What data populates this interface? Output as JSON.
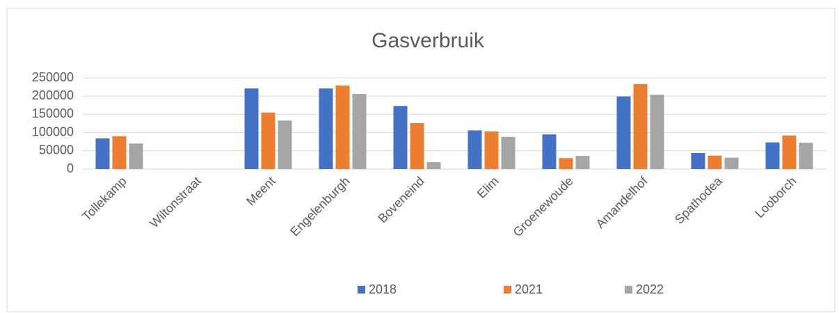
{
  "chart_data": {
    "type": "bar",
    "title": "Gasverbruik",
    "categories": [
      "Tollekamp",
      "Wiltonstraat",
      "Meent",
      "Engelenburgh",
      "Boveneind",
      "Elim",
      "Groenewoude",
      "Amandelhof",
      "Spathodea",
      "Looborch"
    ],
    "series": [
      {
        "name": "2018",
        "color": "#4472c4",
        "values": [
          84000,
          0,
          221000,
          221000,
          173000,
          106000,
          95000,
          199000,
          44000,
          73000
        ]
      },
      {
        "name": "2021",
        "color": "#ed7d31",
        "values": [
          90000,
          0,
          155000,
          229000,
          126000,
          103000,
          30000,
          233000,
          37000,
          92000
        ]
      },
      {
        "name": "2022",
        "color": "#a5a5a5",
        "values": [
          70000,
          0,
          133000,
          206000,
          19000,
          88000,
          36000,
          204000,
          31000,
          72000
        ]
      }
    ],
    "ylim": [
      0,
      250000
    ],
    "yticks": [
      0,
      50000,
      100000,
      150000,
      200000,
      250000
    ],
    "grid": true,
    "legend": "bottom"
  }
}
